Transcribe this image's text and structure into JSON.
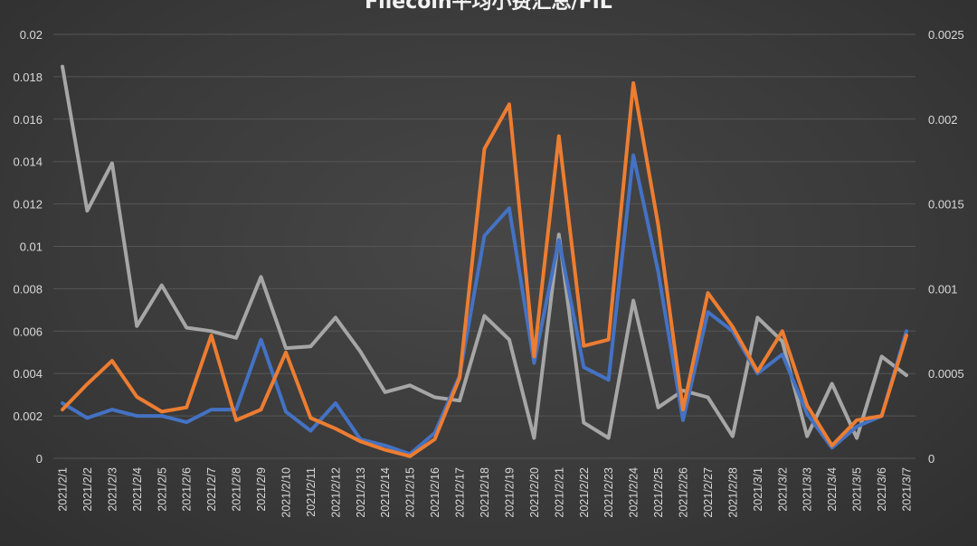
{
  "chart_data": {
    "type": "line",
    "title": "Filecoin平均小费汇总/FIL",
    "categories": [
      "2021/2/1",
      "2021/2/2",
      "2021/2/3",
      "2021/2/4",
      "2021/2/5",
      "2021/2/6",
      "2021/2/7",
      "2021/2/8",
      "2021/2/9",
      "2021/2/10",
      "2021/2/11",
      "2021/2/12",
      "2021/2/13",
      "2021/2/14",
      "2021/2/15",
      "2021/2/16",
      "2021/2/17",
      "2021/2/18",
      "2021/2/19",
      "2021/2/20",
      "2021/2/21",
      "2021/2/22",
      "2021/2/23",
      "2021/2/24",
      "2021/2/25",
      "2021/2/26",
      "2021/2/27",
      "2021/2/28",
      "2021/3/1",
      "2021/3/2",
      "2021/3/3",
      "2021/3/4",
      "2021/3/5",
      "2021/3/6",
      "2021/3/7"
    ],
    "y_left": {
      "ylim": [
        0,
        0.02
      ],
      "ticks": [
        "0",
        "0.002",
        "0.004",
        "0.006",
        "0.008",
        "0.01",
        "0.012",
        "0.014",
        "0.016",
        "0.018",
        "0.02"
      ]
    },
    "y_right": {
      "ylim": [
        0,
        0.0025
      ],
      "ticks": [
        "0",
        "0.0005",
        "0.001",
        "0.0015",
        "0.002",
        "0.0025"
      ]
    },
    "grid": true,
    "series": [
      {
        "color": "#4472c4",
        "axis": "left",
        "values": [
          0.0026,
          0.0019,
          0.0023,
          0.002,
          0.002,
          0.0017,
          0.0023,
          0.0023,
          0.0056,
          0.0022,
          0.0013,
          0.0026,
          0.0009,
          0.0006,
          0.0002,
          0.0012,
          0.0039,
          0.0105,
          0.0118,
          0.0045,
          0.0103,
          0.0043,
          0.0037,
          0.0143,
          0.0088,
          0.0018,
          0.0069,
          0.006,
          0.004,
          0.0049,
          0.0021,
          0.0005,
          0.0015,
          0.002,
          0.006
        ]
      },
      {
        "color": "#ed7d31",
        "axis": "left",
        "values": [
          0.0023,
          0.0035,
          0.0046,
          0.0029,
          0.0022,
          0.0024,
          0.0058,
          0.0018,
          0.0023,
          0.005,
          0.0019,
          0.0014,
          0.0008,
          0.0004,
          0.0001,
          0.0009,
          0.0038,
          0.0146,
          0.0167,
          0.0048,
          0.0152,
          0.0053,
          0.0056,
          0.0177,
          0.011,
          0.0023,
          0.0078,
          0.0062,
          0.0041,
          0.006,
          0.0025,
          0.0006,
          0.0018,
          0.002,
          0.0058
        ]
      },
      {
        "color": "#a6a6a6",
        "axis": "right",
        "values": [
          0.00231,
          0.00146,
          0.00174,
          0.00078,
          0.00102,
          0.00077,
          0.00075,
          0.00071,
          0.00107,
          0.00065,
          0.00066,
          0.00083,
          0.00063,
          0.00039,
          0.00043,
          0.00036,
          0.00034,
          0.00084,
          0.0007,
          0.00012,
          0.00132,
          0.00021,
          0.00012,
          0.00093,
          0.0003,
          0.0004,
          0.00036,
          0.00013,
          0.00083,
          0.00069,
          0.00013,
          0.00044,
          0.00012,
          0.0006,
          0.00049
        ]
      }
    ]
  }
}
